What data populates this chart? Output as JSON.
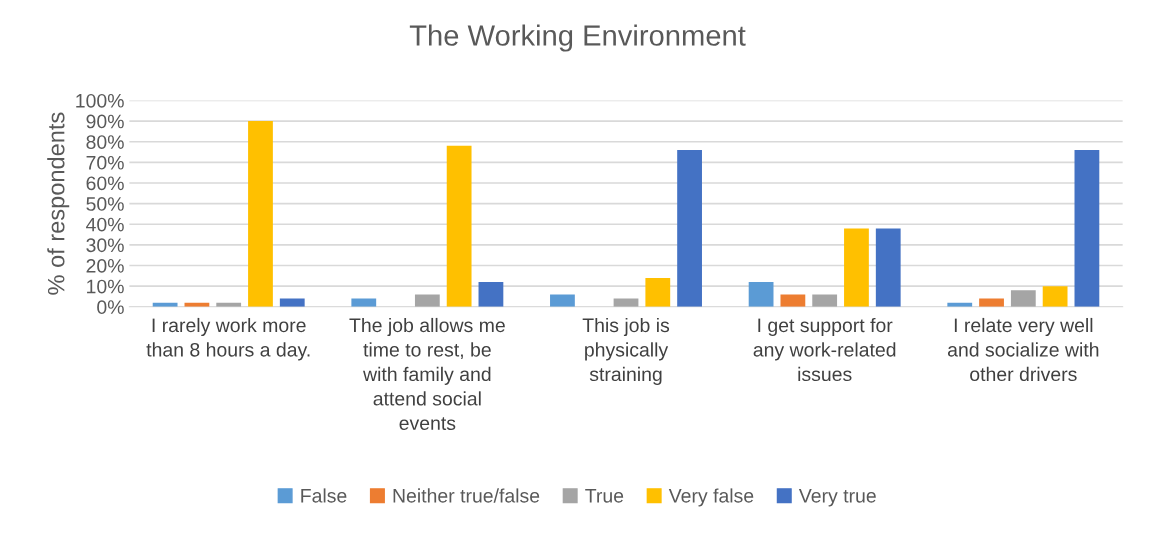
{
  "chart_data": {
    "type": "bar",
    "title": "The Working Environment",
    "ylabel": "% of respondents",
    "categories": [
      "I rarely work more than 8 hours a day.",
      "The job allows me time to rest, be with family and attend social events",
      "This job is physically straining",
      "I get support for any work-related issues",
      "I relate very well and socialize with other drivers"
    ],
    "series": [
      {
        "name": "False",
        "color": "#5b9bd5",
        "values": [
          2,
          4,
          6,
          12,
          2
        ]
      },
      {
        "name": "Neither true/false",
        "color": "#ed7d31",
        "values": [
          2,
          0,
          0,
          6,
          4
        ]
      },
      {
        "name": "True",
        "color": "#a5a5a5",
        "values": [
          2,
          6,
          4,
          6,
          8
        ]
      },
      {
        "name": "Very false",
        "color": "#ffc000",
        "values": [
          90,
          78,
          14,
          38,
          10
        ]
      },
      {
        "name": "Very true",
        "color": "#4472c4",
        "values": [
          4,
          12,
          76,
          38,
          76
        ]
      }
    ],
    "ylim": [
      0,
      100
    ],
    "yticks": [
      {
        "value": 0,
        "label": "0%"
      },
      {
        "value": 10,
        "label": "10%"
      },
      {
        "value": 20,
        "label": "20%"
      },
      {
        "value": 30,
        "label": "30%"
      },
      {
        "value": 40,
        "label": "40%"
      },
      {
        "value": 50,
        "label": "50%"
      },
      {
        "value": 60,
        "label": "60%"
      },
      {
        "value": 70,
        "label": "70%"
      },
      {
        "value": 80,
        "label": "80%"
      },
      {
        "value": 90,
        "label": "90%"
      },
      {
        "value": 100,
        "label": "100%"
      }
    ],
    "grid": "y",
    "legend": "bottom"
  }
}
